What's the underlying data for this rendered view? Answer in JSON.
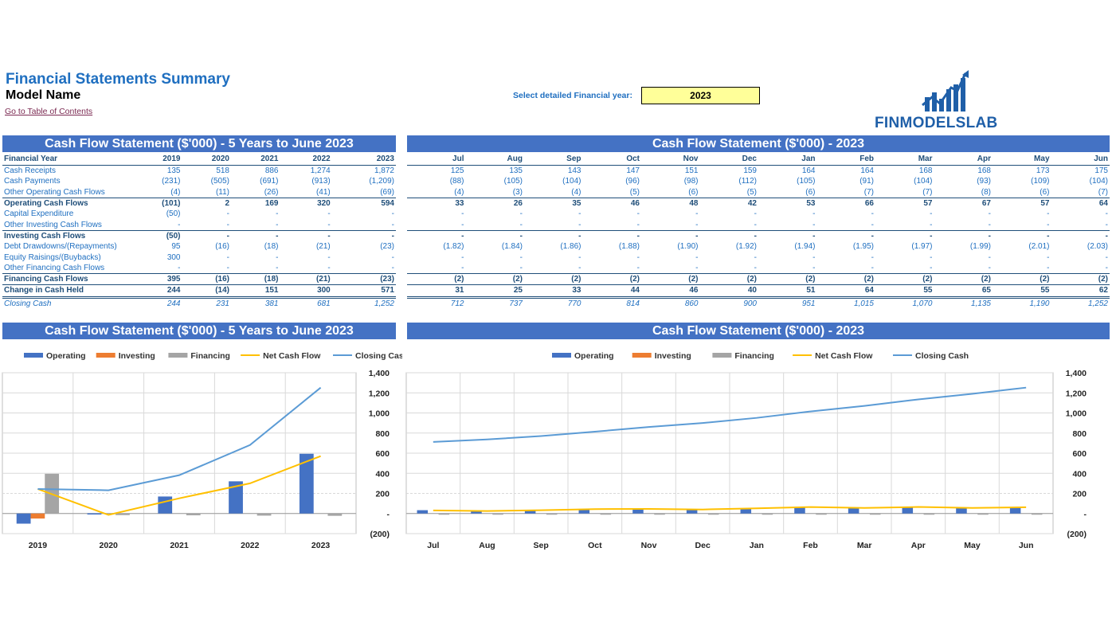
{
  "header": {
    "title": "Financial Statements Summary",
    "model_name": "Model Name",
    "toc_link": "Go to Table of Contents",
    "year_label": "Select detailed Financial year:",
    "year_value": "2023",
    "logo_text": "FINMODELSLAB"
  },
  "annual": {
    "title": "Cash Flow Statement ($'000) - 5 Years to June 2023",
    "header_label": "Financial Year",
    "years": [
      "2019",
      "2020",
      "2021",
      "2022",
      "2023"
    ],
    "rows": [
      {
        "label": "Cash Receipts",
        "values": [
          "135",
          "518",
          "886",
          "1,274",
          "1,872"
        ]
      },
      {
        "label": "Cash Payments",
        "values": [
          "(231)",
          "(505)",
          "(691)",
          "(913)",
          "(1,209)"
        ]
      },
      {
        "label": "Other Operating Cash Flows",
        "values": [
          "(4)",
          "(11)",
          "(26)",
          "(41)",
          "(69)"
        ]
      },
      {
        "label": "Operating Cash Flows",
        "values": [
          "(101)",
          "2",
          "169",
          "320",
          "594"
        ]
      },
      {
        "label": "Capital Expenditure",
        "values": [
          "(50)",
          "-",
          "-",
          "-",
          "-"
        ]
      },
      {
        "label": "Other Investing Cash Flows",
        "values": [
          "-",
          "-",
          "-",
          "-",
          "-"
        ]
      },
      {
        "label": "Investing Cash Flows",
        "values": [
          "(50)",
          "-",
          "-",
          "-",
          "-"
        ]
      },
      {
        "label": "Debt Drawdowns/(Repayments)",
        "values": [
          "95",
          "(16)",
          "(18)",
          "(21)",
          "(23)"
        ]
      },
      {
        "label": "Equity Raisings/(Buybacks)",
        "values": [
          "300",
          "-",
          "-",
          "-",
          "-"
        ]
      },
      {
        "label": "Other Financing Cash Flows",
        "values": [
          "-",
          "-",
          "-",
          "-",
          "-"
        ]
      },
      {
        "label": "Financing Cash Flows",
        "values": [
          "395",
          "(16)",
          "(18)",
          "(21)",
          "(23)"
        ]
      },
      {
        "label": "Change in Cash Held",
        "values": [
          "244",
          "(14)",
          "151",
          "300",
          "571"
        ]
      },
      {
        "label": "Closing Cash",
        "values": [
          "244",
          "231",
          "381",
          "681",
          "1,252"
        ]
      }
    ]
  },
  "monthly": {
    "title": "Cash Flow Statement ($'000) - 2023",
    "months": [
      "Jul",
      "Aug",
      "Sep",
      "Oct",
      "Nov",
      "Dec",
      "Jan",
      "Feb",
      "Mar",
      "Apr",
      "May",
      "Jun"
    ],
    "rows": [
      {
        "values": [
          "125",
          "135",
          "143",
          "147",
          "151",
          "159",
          "164",
          "164",
          "168",
          "168",
          "173",
          "175"
        ]
      },
      {
        "values": [
          "(88)",
          "(105)",
          "(104)",
          "(96)",
          "(98)",
          "(112)",
          "(105)",
          "(91)",
          "(104)",
          "(93)",
          "(109)",
          "(104)"
        ]
      },
      {
        "values": [
          "(4)",
          "(3)",
          "(4)",
          "(5)",
          "(6)",
          "(5)",
          "(6)",
          "(7)",
          "(7)",
          "(8)",
          "(6)",
          "(7)"
        ]
      },
      {
        "values": [
          "33",
          "26",
          "35",
          "46",
          "48",
          "42",
          "53",
          "66",
          "57",
          "67",
          "57",
          "64"
        ]
      },
      {
        "values": [
          "-",
          "-",
          "-",
          "-",
          "-",
          "-",
          "-",
          "-",
          "-",
          "-",
          "-",
          "-"
        ]
      },
      {
        "values": [
          "-",
          "-",
          "-",
          "-",
          "-",
          "-",
          "-",
          "-",
          "-",
          "-",
          "-",
          "-"
        ]
      },
      {
        "values": [
          "-",
          "-",
          "-",
          "-",
          "-",
          "-",
          "-",
          "-",
          "-",
          "-",
          "-",
          "-"
        ]
      },
      {
        "values": [
          "(1.82)",
          "(1.84)",
          "(1.86)",
          "(1.88)",
          "(1.90)",
          "(1.92)",
          "(1.94)",
          "(1.95)",
          "(1.97)",
          "(1.99)",
          "(2.01)",
          "(2.03)"
        ]
      },
      {
        "values": [
          "-",
          "-",
          "-",
          "-",
          "-",
          "-",
          "-",
          "-",
          "-",
          "-",
          "-",
          "-"
        ]
      },
      {
        "values": [
          "-",
          "-",
          "-",
          "-",
          "-",
          "-",
          "-",
          "-",
          "-",
          "-",
          "-",
          "-"
        ]
      },
      {
        "values": [
          "(2)",
          "(2)",
          "(2)",
          "(2)",
          "(2)",
          "(2)",
          "(2)",
          "(2)",
          "(2)",
          "(2)",
          "(2)",
          "(2)"
        ]
      },
      {
        "values": [
          "31",
          "25",
          "33",
          "44",
          "46",
          "40",
          "51",
          "64",
          "55",
          "65",
          "55",
          "62"
        ]
      },
      {
        "values": [
          "712",
          "737",
          "770",
          "814",
          "860",
          "900",
          "951",
          "1,015",
          "1,070",
          "1,135",
          "1,190",
          "1,252"
        ]
      }
    ]
  },
  "legend": [
    "Operating",
    "Investing",
    "Financing",
    "Net Cash Flow",
    "Closing Cash"
  ],
  "colors": {
    "operating": "#4472c4",
    "investing": "#ed7d31",
    "financing": "#a5a5a5",
    "net": "#ffc000",
    "closing": "#5b9bd5",
    "band": "#4472c4"
  },
  "chart_data": [
    {
      "type": "bar",
      "title": "Cash Flow Statement ($'000) - 5 Years to June 2023",
      "categories": [
        "2019",
        "2020",
        "2021",
        "2022",
        "2023"
      ],
      "ylim": [
        -200,
        1400
      ],
      "yticks": [
        "(200)",
        "-",
        "200",
        "400",
        "600",
        "800",
        "1,000",
        "1,200",
        "1,400"
      ],
      "series": [
        {
          "name": "Operating",
          "kind": "bar",
          "values": [
            -101,
            2,
            169,
            320,
            594
          ]
        },
        {
          "name": "Investing",
          "kind": "bar",
          "values": [
            -50,
            0,
            0,
            0,
            0
          ]
        },
        {
          "name": "Financing",
          "kind": "bar",
          "values": [
            395,
            -16,
            -18,
            -21,
            -23
          ]
        },
        {
          "name": "Net Cash Flow",
          "kind": "line",
          "values": [
            244,
            -14,
            151,
            300,
            571
          ]
        },
        {
          "name": "Closing Cash",
          "kind": "line",
          "values": [
            244,
            231,
            381,
            681,
            1252
          ]
        }
      ]
    },
    {
      "type": "bar",
      "title": "Cash Flow Statement ($'000) - 2023",
      "categories": [
        "Jul",
        "Aug",
        "Sep",
        "Oct",
        "Nov",
        "Dec",
        "Jan",
        "Feb",
        "Mar",
        "Apr",
        "May",
        "Jun"
      ],
      "ylim": [
        -200,
        1400
      ],
      "yticks": [
        "(200)",
        "-",
        "200",
        "400",
        "600",
        "800",
        "1,000",
        "1,200",
        "1,400"
      ],
      "series": [
        {
          "name": "Operating",
          "kind": "bar",
          "values": [
            33,
            26,
            35,
            46,
            48,
            42,
            53,
            66,
            57,
            67,
            57,
            64
          ]
        },
        {
          "name": "Investing",
          "kind": "bar",
          "values": [
            0,
            0,
            0,
            0,
            0,
            0,
            0,
            0,
            0,
            0,
            0,
            0
          ]
        },
        {
          "name": "Financing",
          "kind": "bar",
          "values": [
            -1.82,
            -1.84,
            -1.86,
            -1.88,
            -1.9,
            -1.92,
            -1.94,
            -1.95,
            -1.97,
            -1.99,
            -2.01,
            -2.03
          ]
        },
        {
          "name": "Net Cash Flow",
          "kind": "line",
          "values": [
            31,
            25,
            33,
            44,
            46,
            40,
            51,
            64,
            55,
            65,
            55,
            62
          ]
        },
        {
          "name": "Closing Cash",
          "kind": "line",
          "values": [
            712,
            737,
            770,
            814,
            860,
            900,
            951,
            1015,
            1070,
            1135,
            1190,
            1252
          ]
        }
      ]
    }
  ]
}
